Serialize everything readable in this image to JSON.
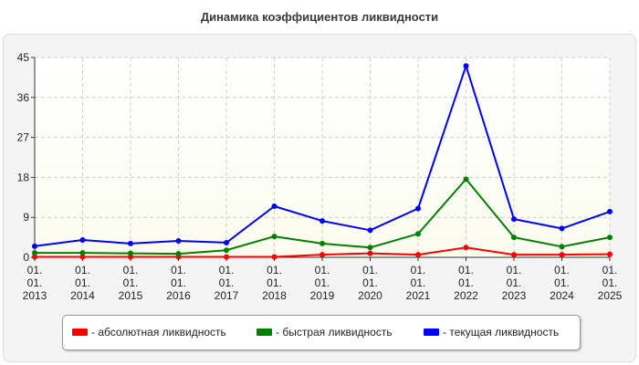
{
  "chart_data": {
    "type": "line",
    "title": "Динамика коэффициентов ликвидности",
    "xlabel": "",
    "ylabel": "",
    "categories": [
      [
        "01.",
        "01.",
        "2013"
      ],
      [
        "01.",
        "01.",
        "2014"
      ],
      [
        "01.",
        "01.",
        "2015"
      ],
      [
        "01.",
        "01.",
        "2016"
      ],
      [
        "01.",
        "01.",
        "2017"
      ],
      [
        "01.",
        "01.",
        "2018"
      ],
      [
        "01.",
        "01.",
        "2019"
      ],
      [
        "01.",
        "01.",
        "2020"
      ],
      [
        "01.",
        "01.",
        "2021"
      ],
      [
        "01.",
        "01.",
        "2022"
      ],
      [
        "01.",
        "01.",
        "2023"
      ],
      [
        "01.",
        "01.",
        "2024"
      ],
      [
        "01.",
        "01.",
        "2025"
      ]
    ],
    "ylim": [
      0,
      45
    ],
    "yticks": [
      0,
      9,
      18,
      27,
      36,
      45
    ],
    "grid": true,
    "legend_position": "bottom",
    "series": [
      {
        "name": "- абсолютная ликвидность",
        "color": "#ff0000",
        "values": [
          0.1,
          0.1,
          0.1,
          0.1,
          0.1,
          0.1,
          0.6,
          0.9,
          0.6,
          2.2,
          0.6,
          0.6,
          0.7
        ]
      },
      {
        "name": "- быстрая ликвидность",
        "color": "#008000",
        "values": [
          1.0,
          1.0,
          0.9,
          0.8,
          1.6,
          4.7,
          3.1,
          2.2,
          5.3,
          17.6,
          4.5,
          2.4,
          4.5
        ]
      },
      {
        "name": "- текущая ликвидность",
        "color": "#0000ff",
        "values": [
          2.5,
          3.9,
          3.1,
          3.7,
          3.3,
          11.5,
          8.2,
          6.1,
          11.0,
          43.1,
          8.6,
          6.5,
          10.3
        ]
      }
    ]
  }
}
